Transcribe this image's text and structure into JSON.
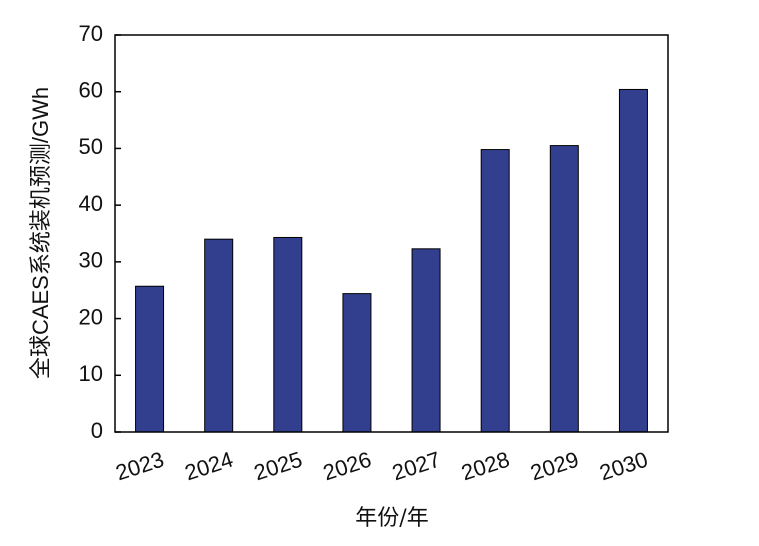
{
  "chart_data": {
    "type": "bar",
    "x_label": "年份/年",
    "y_label": "全球CAES系统装机预测/GWh",
    "categories": [
      "2023",
      "2024",
      "2025",
      "2026",
      "2027",
      "2028",
      "2029",
      "2030"
    ],
    "values": [
      25.7,
      34.0,
      34.3,
      24.4,
      32.3,
      49.8,
      50.5,
      60.4
    ],
    "color": "#313f8e",
    "ylim": [
      0,
      70
    ],
    "yticks": [
      0,
      10,
      20,
      30,
      40,
      50,
      60,
      70
    ],
    "grid": false
  }
}
